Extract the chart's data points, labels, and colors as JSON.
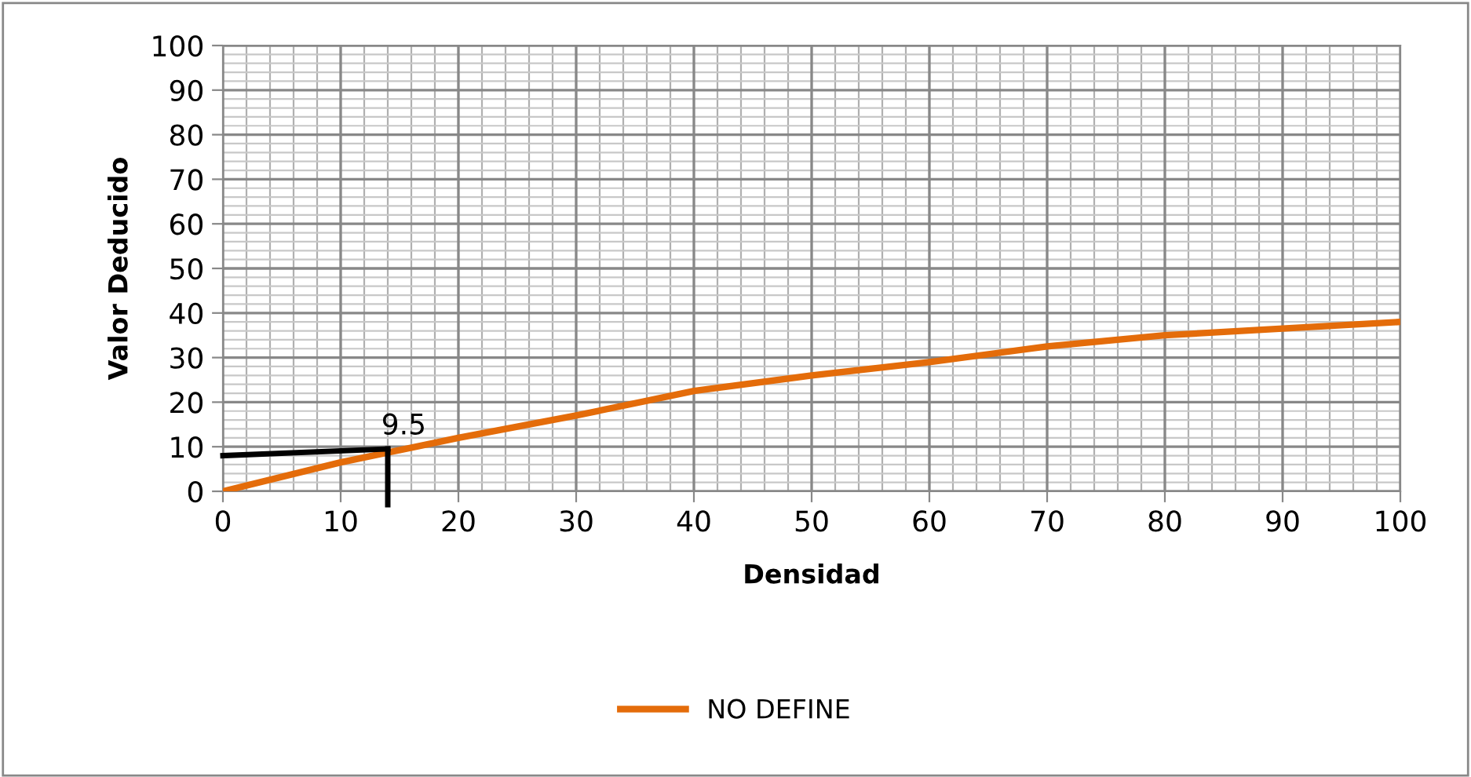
{
  "chart_data": {
    "type": "line",
    "xlabel": "Densidad",
    "ylabel": "Valor Deducido",
    "x": [
      0,
      10,
      20,
      30,
      40,
      50,
      60,
      70,
      80,
      90,
      100
    ],
    "series": [
      {
        "name": "NO DEFINE",
        "color": "#e46c0a",
        "values": [
          0,
          6.5,
          12,
          17,
          22.5,
          26,
          29,
          32.5,
          35,
          36.5,
          38
        ]
      }
    ],
    "xlim": [
      0,
      100
    ],
    "xticks": [
      0,
      10,
      20,
      30,
      40,
      50,
      60,
      70,
      80,
      90,
      100
    ],
    "ylim": [
      0,
      100
    ],
    "yticks": [
      0,
      10,
      20,
      30,
      40,
      50,
      60,
      70,
      80,
      90,
      100
    ],
    "annotations": [
      {
        "text": "9.5",
        "x": 14,
        "y": 9.5
      }
    ],
    "grid": true,
    "legend": "bottom",
    "marker": "none",
    "line_style": "solid"
  }
}
